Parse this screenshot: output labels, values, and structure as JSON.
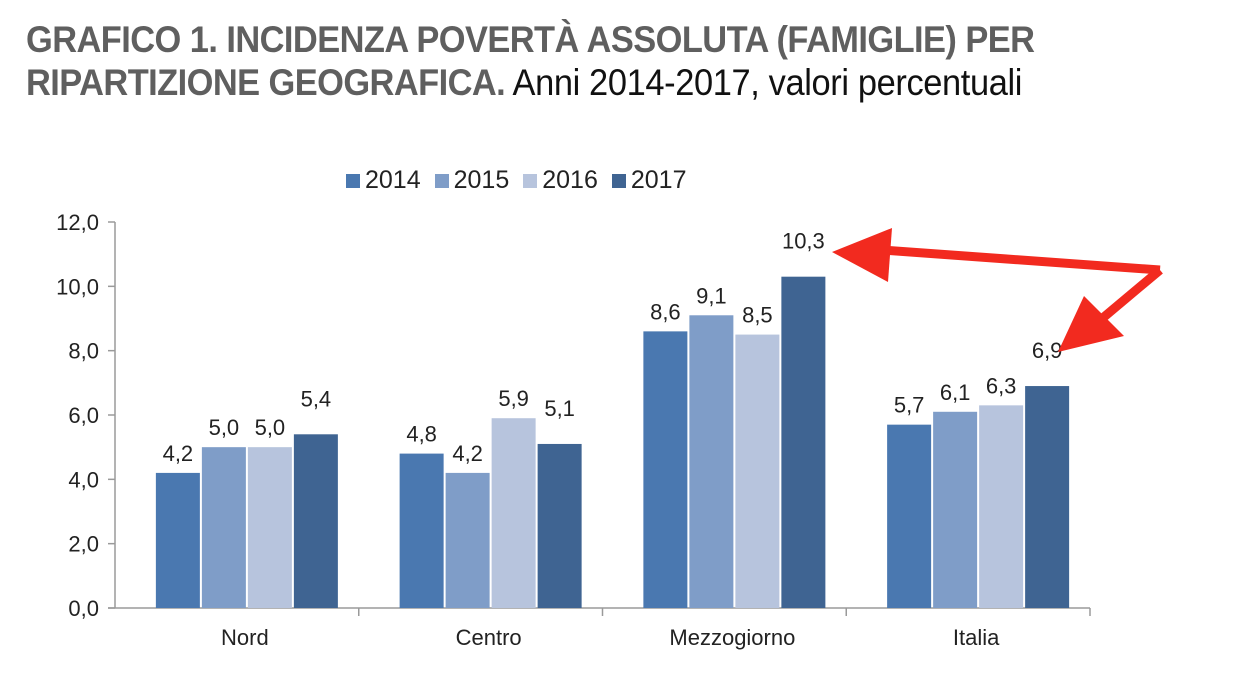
{
  "header": {
    "title_bold": "GRAFICO 1. INCIDENZA POVERTÀ ASSOLUTA (FAMIGLIE) PER RIPARTIZIONE GEOGRAFICA.",
    "title_line1": "GRAFICO 1. INCIDENZA POVERTÀ ASSOLUTA (FAMIGLIE) PER",
    "title_line2_bold": "RIPARTIZIONE GEOGRAFICA.",
    "subtitle": " Anni 2014-2017, valori percentuali"
  },
  "legend": [
    {
      "label": "2014",
      "color": "#4a78b0"
    },
    {
      "label": "2015",
      "color": "#7f9dc8"
    },
    {
      "label": "2016",
      "color": "#b7c4dd"
    },
    {
      "label": "2017",
      "color": "#3f6492"
    }
  ],
  "annotations": {
    "arrow_color": "#f22a1f",
    "arrows": [
      {
        "from": "bend-point",
        "to": "Mezzogiorno 2017 (10,3)"
      },
      {
        "from": "bend-point",
        "to": "Italia 2017 (6,9)"
      }
    ]
  },
  "chart_data": {
    "type": "bar",
    "title": "GRAFICO 1. INCIDENZA POVERTÀ ASSOLUTA (FAMIGLIE) PER RIPARTIZIONE GEOGRAFICA. Anni 2014-2017, valori percentuali",
    "xlabel": "",
    "ylabel": "",
    "ylim": [
      0,
      12
    ],
    "yticks": [
      "0,0",
      "2,0",
      "4,0",
      "6,0",
      "8,0",
      "10,0",
      "12,0"
    ],
    "grid": false,
    "legend_position": "top",
    "categories": [
      "Nord",
      "Centro",
      "Mezzogiorno",
      "Italia"
    ],
    "series": [
      {
        "name": "2014",
        "values": [
          4.2,
          4.8,
          8.6,
          5.7
        ],
        "labels": [
          "4,2",
          "4,8",
          "8,6",
          "5,7"
        ]
      },
      {
        "name": "2015",
        "values": [
          5.0,
          4.2,
          9.1,
          6.1
        ],
        "labels": [
          "5,0",
          "4,2",
          "9,1",
          "6,1"
        ]
      },
      {
        "name": "2016",
        "values": [
          5.0,
          5.9,
          8.5,
          6.3
        ],
        "labels": [
          "5,0",
          "5,9",
          "8,5",
          "6,3"
        ]
      },
      {
        "name": "2017",
        "values": [
          5.4,
          5.1,
          10.3,
          6.9
        ],
        "labels": [
          "5,4",
          "5,1",
          "10,3",
          "6,9"
        ]
      }
    ]
  }
}
